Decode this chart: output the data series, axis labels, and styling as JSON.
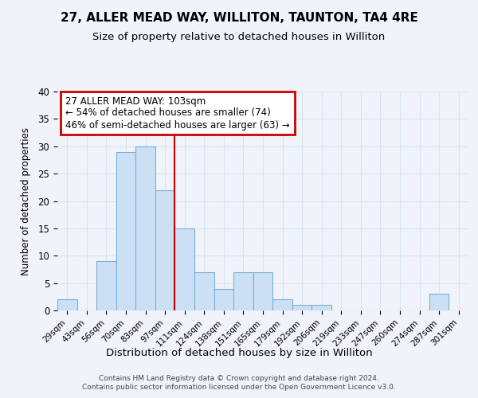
{
  "title": "27, ALLER MEAD WAY, WILLITON, TAUNTON, TA4 4RE",
  "subtitle": "Size of property relative to detached houses in Williton",
  "xlabel": "Distribution of detached houses by size in Williton",
  "ylabel": "Number of detached properties",
  "categories": [
    "29sqm",
    "43sqm",
    "56sqm",
    "70sqm",
    "83sqm",
    "97sqm",
    "111sqm",
    "124sqm",
    "138sqm",
    "151sqm",
    "165sqm",
    "179sqm",
    "192sqm",
    "206sqm",
    "219sqm",
    "233sqm",
    "247sqm",
    "260sqm",
    "274sqm",
    "287sqm",
    "301sqm"
  ],
  "values": [
    2,
    0,
    9,
    29,
    30,
    22,
    15,
    7,
    4,
    7,
    7,
    2,
    1,
    1,
    0,
    0,
    0,
    0,
    0,
    3,
    0
  ],
  "bar_color": "#cce0f5",
  "bar_edge_color": "#7aadd4",
  "annotation_text": "27 ALLER MEAD WAY: 103sqm\n← 54% of detached houses are smaller (74)\n46% of semi-detached houses are larger (63) →",
  "annotation_box_edge": "#cc0000",
  "vline_x": 5.5,
  "vline_color": "#cc0000",
  "ylim": [
    0,
    40
  ],
  "yticks": [
    0,
    5,
    10,
    15,
    20,
    25,
    30,
    35,
    40
  ],
  "footer_line1": "Contains HM Land Registry data © Crown copyright and database right 2024.",
  "footer_line2": "Contains public sector information licensed under the Open Government Licence v3.0.",
  "background_color": "#f0f4fa",
  "plot_bg_color": "#f0f4fa",
  "grid_color": "#d8e4f0"
}
